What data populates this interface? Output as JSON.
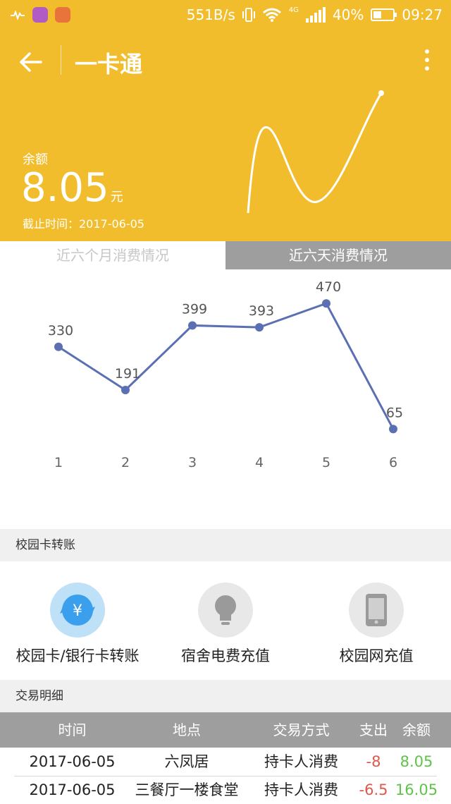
{
  "status_bar": {
    "net_speed": "551B/s",
    "network": "4G",
    "battery": "40%",
    "battery_level": 0.4,
    "time": "09:27",
    "icons": [
      "pulse-app-icon",
      "gallery-app-icon",
      "tool-app-icon",
      "vibrate-icon",
      "wifi-icon",
      "signal-icon",
      "battery-icon"
    ]
  },
  "header": {
    "title": "一卡通",
    "balance_label": "余额",
    "balance_value": "8.05",
    "balance_unit": "元",
    "as_of": "截止时间：2017-06-05",
    "color": "#f2bd2c"
  },
  "tabs": [
    {
      "label": "近六个月消费情况",
      "active": false
    },
    {
      "label": "近六天消费情况",
      "active": true
    }
  ],
  "chart_data": {
    "type": "line",
    "x": [
      "1",
      "2",
      "3",
      "4",
      "5",
      "6"
    ],
    "series": [
      {
        "values": [
          330,
          191,
          399,
          393,
          470,
          65
        ]
      }
    ],
    "ylim": [
      0,
      500
    ],
    "color": "#5b6fb3",
    "grid": false,
    "legend": false
  },
  "transfer_section": {
    "title": "校园卡转账",
    "items": [
      {
        "label": "校园卡/银行卡转账",
        "icon": "yen-exchange-icon"
      },
      {
        "label": "宿舍电费充值",
        "icon": "lightbulb-icon"
      },
      {
        "label": "校园网充值",
        "icon": "phone-icon"
      }
    ]
  },
  "transactions_section": {
    "title": "交易明细",
    "headers": [
      "时间",
      "地点",
      "交易方式",
      "支出",
      "余额"
    ],
    "rows": [
      {
        "time": "2017-06-05",
        "place": "六凤居",
        "method": "持卡人消费",
        "amount": "-8",
        "balance": "8.05"
      },
      {
        "time": "2017-06-05",
        "place": "三餐厅一楼食堂",
        "method": "持卡人消费",
        "amount": "-6.5",
        "balance": "16.05"
      }
    ]
  }
}
